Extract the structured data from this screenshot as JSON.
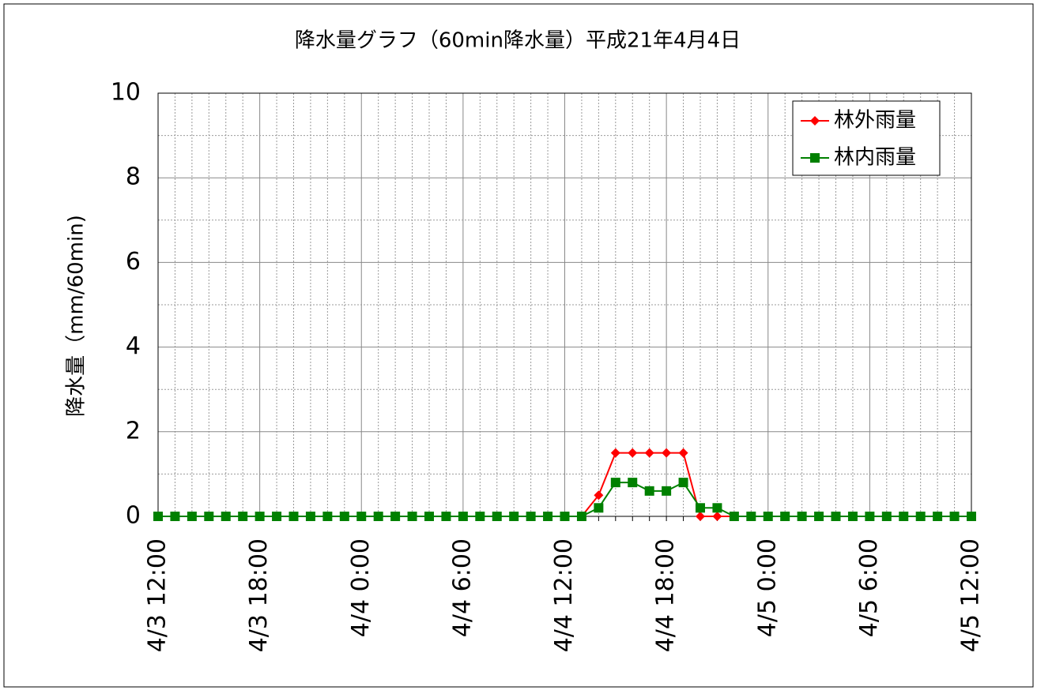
{
  "chart_data": {
    "type": "line",
    "title": "降水量グラフ（60min降水量）平成21年4月4日",
    "y_label": "降水量（mm/60min)",
    "categories": [
      "4/3 12:00",
      null,
      null,
      null,
      null,
      null,
      "4/3 18:00",
      null,
      null,
      null,
      null,
      null,
      "4/4 0:00",
      null,
      null,
      null,
      null,
      null,
      "4/4 6:00",
      null,
      null,
      null,
      null,
      null,
      "4/4 12:00",
      null,
      null,
      null,
      null,
      null,
      "4/4 18:00",
      null,
      null,
      null,
      null,
      null,
      "4/5 0:00",
      null,
      null,
      null,
      null,
      null,
      "4/5 6:00",
      null,
      null,
      null,
      null,
      null,
      "4/5 12:00"
    ],
    "series": [
      {
        "name": "林外雨量",
        "color": "#ff0000",
        "marker": "diamond",
        "values": [
          0,
          0,
          0,
          0,
          0,
          0,
          0,
          0,
          0,
          0,
          0,
          0,
          0,
          0,
          0,
          0,
          0,
          0,
          0,
          0,
          0,
          0,
          0,
          0,
          0,
          0,
          0.5,
          1.5,
          1.5,
          1.5,
          1.5,
          1.5,
          0,
          0,
          0,
          0,
          0,
          0,
          0,
          0,
          0,
          0,
          0,
          0,
          0,
          0,
          0,
          0,
          0
        ]
      },
      {
        "name": "林内雨量",
        "color": "#008000",
        "marker": "square",
        "values": [
          0,
          0,
          0,
          0,
          0,
          0,
          0,
          0,
          0,
          0,
          0,
          0,
          0,
          0,
          0,
          0,
          0,
          0,
          0,
          0,
          0,
          0,
          0,
          0,
          0,
          0,
          0.2,
          0.8,
          0.8,
          0.6,
          0.6,
          0.8,
          0.2,
          0.2,
          0,
          0,
          0,
          0,
          0,
          0,
          0,
          0,
          0,
          0,
          0,
          0,
          0,
          0,
          0
        ]
      }
    ],
    "ylim": [
      0,
      10
    ],
    "yticks": [
      0,
      2,
      4,
      6,
      8,
      10
    ],
    "grid": true,
    "legend": "top-right"
  }
}
